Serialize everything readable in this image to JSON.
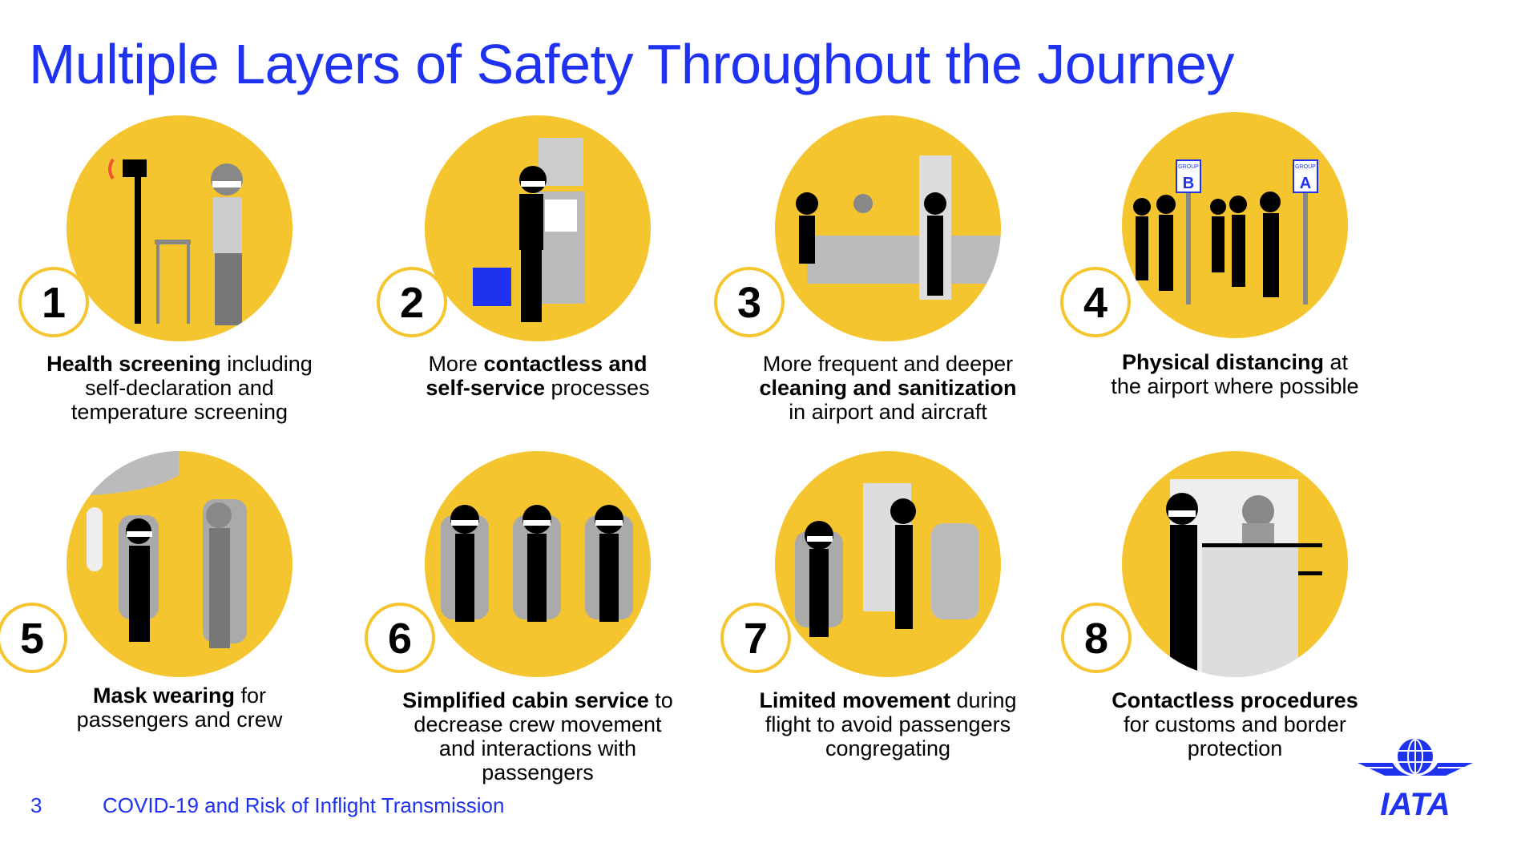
{
  "colors": {
    "accent": "#1e32f0",
    "circle": "#f5c530"
  },
  "title": "Multiple Layers of Safety Throughout the Journey",
  "items": [
    {
      "number": "1",
      "bold1": "Health screening",
      "rest1": " including",
      "line2": "self-declaration and",
      "line3": "temperature screening",
      "icon": "temperature-screening-illustration"
    },
    {
      "number": "2",
      "pre1": "More ",
      "bold1": "contactless and",
      "bold2": "self-service",
      "rest2": " processes",
      "icon": "self-service-kiosk-illustration"
    },
    {
      "number": "3",
      "line1": "More frequent and deeper",
      "bold2": "cleaning and sanitization",
      "line3": "in airport and aircraft",
      "icon": "cleaning-illustration"
    },
    {
      "number": "4",
      "bold1": "Physical distancing",
      "rest1": " at",
      "line2": "the airport where possible",
      "icon": "distancing-queue-illustration",
      "sign_b_small": "GROUP",
      "sign_b": "B",
      "sign_a_small": "GROUP",
      "sign_a": "A"
    },
    {
      "number": "5",
      "bold1": "Mask wearing",
      "rest1": " for",
      "line2": "passengers and crew",
      "icon": "mask-wearing-illustration"
    },
    {
      "number": "6",
      "bold1": "Simplified cabin service",
      "rest1": " to",
      "line2": "decrease crew movement",
      "line3": "and interactions with",
      "line4": "passengers",
      "icon": "cabin-service-illustration"
    },
    {
      "number": "7",
      "bold1": "Limited movement",
      "rest1": " during",
      "line2": "flight to avoid passengers",
      "line3": "congregating",
      "icon": "limited-movement-illustration"
    },
    {
      "number": "8",
      "bold1": "Contactless procedures",
      "line2": "for customs and border",
      "line3": "protection",
      "icon": "border-control-illustration"
    }
  ],
  "footer": {
    "page_number": "3",
    "caption": "COVID-19 and Risk of Inflight Transmission"
  },
  "logo": {
    "text": "IATA"
  }
}
